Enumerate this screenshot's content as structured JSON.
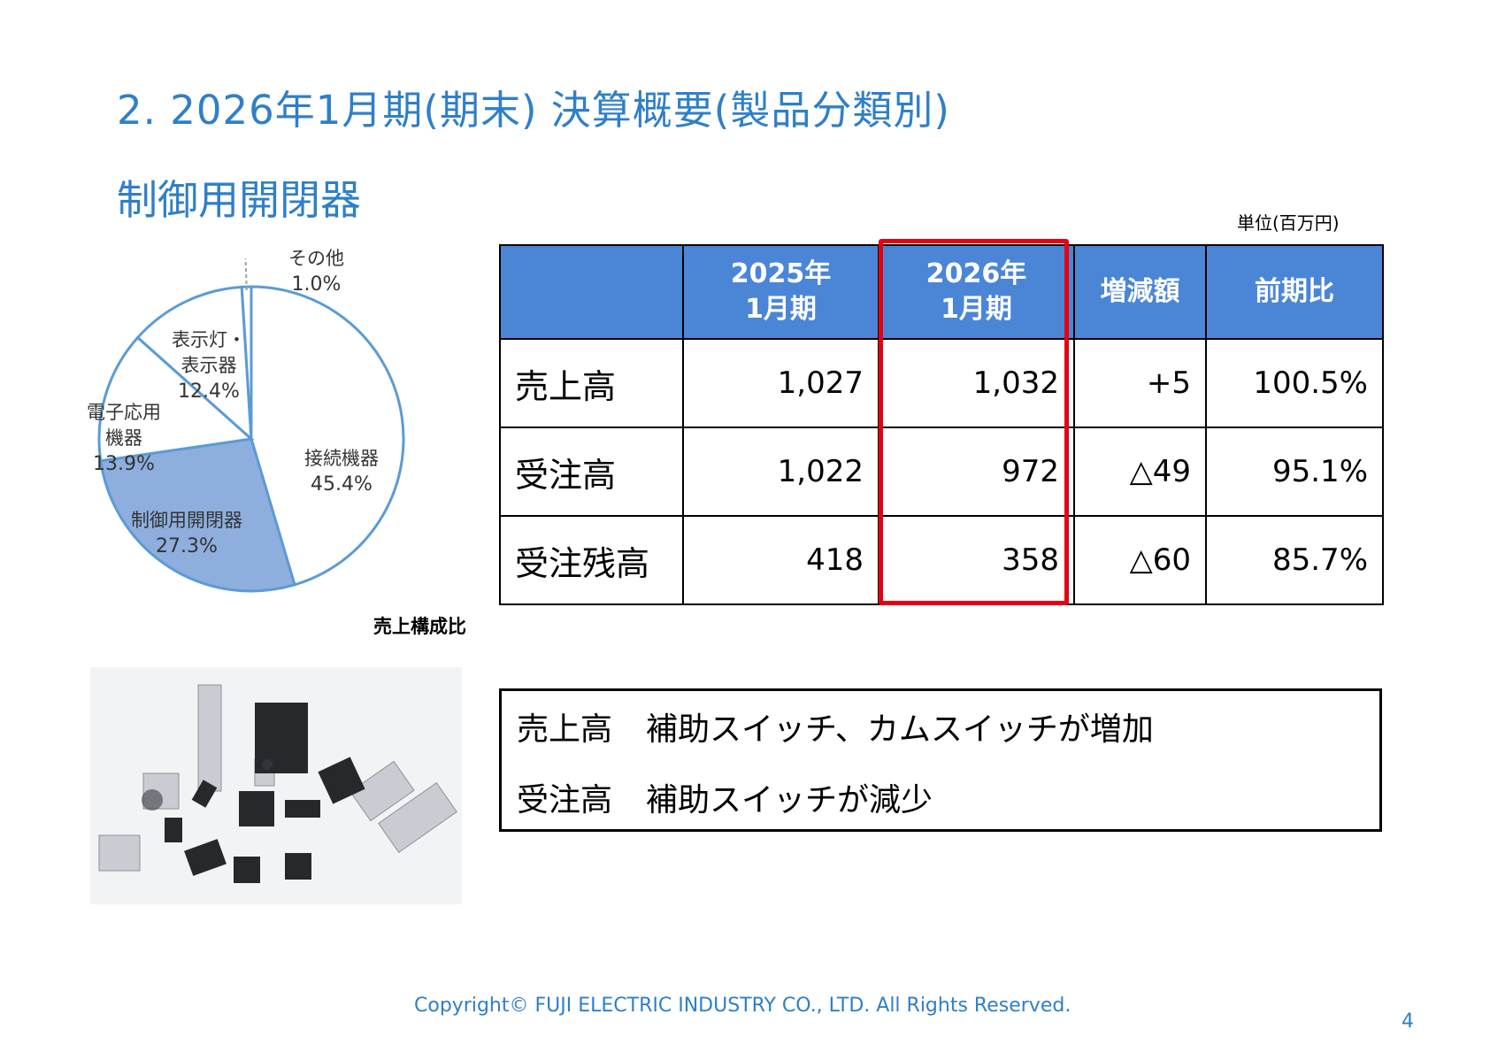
{
  "header": {
    "title": "2. 2026年1月期(期末) 決算概要(製品分類別)",
    "subtitle": "制御用開閉器",
    "unit": "単位(百万円)"
  },
  "chart_data": {
    "type": "pie",
    "caption": "売上構成比",
    "slices": [
      {
        "label": "接続機器",
        "value": 45.4,
        "pct_label": "45.4%",
        "color": "#ffffff"
      },
      {
        "label": "制御用開閉器",
        "value": 27.3,
        "pct_label": "27.3%",
        "color": "#8eaede"
      },
      {
        "label": "電子応用機器",
        "value": 13.9,
        "pct_label": "13.9%",
        "color": "#ffffff"
      },
      {
        "label": "表示灯・表示器",
        "value": 12.4,
        "pct_label": "12.4%",
        "color": "#ffffff"
      },
      {
        "label": "その他",
        "value": 1.0,
        "pct_label": "1.0%",
        "color": "#ffffff"
      }
    ],
    "label_lines": {
      "connect": "接続機器",
      "control": "制御用開閉器",
      "electronic_1": "電子応用",
      "electronic_2": "機器",
      "indicator_1": "表示灯・",
      "indicator_2": "表示器",
      "other": "その他"
    },
    "stroke_color": "#5b9bd5"
  },
  "table": {
    "headers": {
      "col1": "",
      "y2025_line1": "2025年",
      "y2025_line2": "1月期",
      "y2026_line1": "2026年",
      "y2026_line2": "1月期",
      "diff": "増減額",
      "ratio": "前期比"
    },
    "rows": [
      {
        "label": "売上高",
        "y2025": "1,027",
        "y2026": "1,032",
        "diff": "+5",
        "ratio": "100.5%"
      },
      {
        "label": "受注高",
        "y2025": "1,022",
        "y2026": "972",
        "diff": "△49",
        "ratio": "95.1%"
      },
      {
        "label": "受注残高",
        "y2025": "418",
        "y2026": "358",
        "diff": "△60",
        "ratio": "85.7%"
      }
    ],
    "header_color": "#4b86d6",
    "highlight_color": "#e60012"
  },
  "commentary": {
    "line1_label": "売上高",
    "line1_text": "補助スイッチ、カムスイッチが増加",
    "line2_label": "受注高",
    "line2_text": "補助スイッチが減少"
  },
  "footer": {
    "copyright": "Copyright© FUJI ELECTRIC INDUSTRY CO., LTD. All Rights Reserved.",
    "page": "4"
  }
}
